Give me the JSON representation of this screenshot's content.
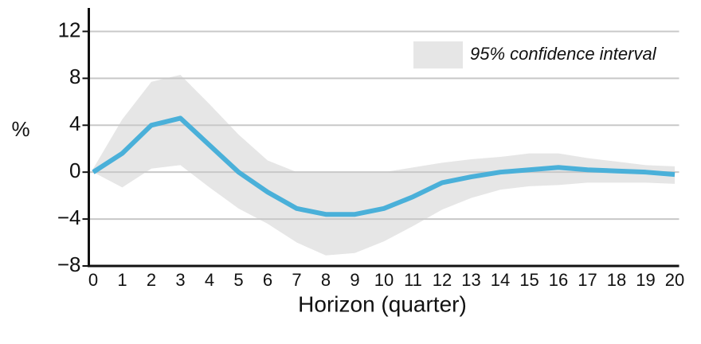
{
  "chart_data": {
    "type": "line",
    "ylabel": "%",
    "xlabel": "Horizon (quarter)",
    "x": [
      0,
      1,
      2,
      3,
      4,
      5,
      6,
      7,
      8,
      9,
      10,
      11,
      12,
      13,
      14,
      15,
      16,
      17,
      18,
      19,
      20
    ],
    "xlim": [
      -0.15,
      20.15
    ],
    "xticks": [
      0,
      1,
      2,
      3,
      4,
      5,
      6,
      7,
      8,
      9,
      10,
      11,
      12,
      13,
      14,
      15,
      16,
      17,
      18,
      19,
      20
    ],
    "ylim": [
      -8,
      14
    ],
    "yticks": [
      {
        "value": -8,
        "label": "−8"
      },
      {
        "value": -4,
        "label": "−4"
      },
      0,
      4,
      8,
      12
    ],
    "grid": true,
    "series": [
      {
        "color": "#4ab0d9",
        "values": [
          0,
          1.6,
          4.0,
          4.6,
          2.3,
          0,
          -1.7,
          -3.1,
          -3.6,
          -3.6,
          -3.1,
          -2.1,
          -0.9,
          -0.4,
          0,
          0.2,
          0.4,
          0.2,
          0.1,
          0,
          -0.2
        ]
      }
    ],
    "band": {
      "name": "95% confidence interval",
      "color": "#e6e6e6",
      "upper": [
        0.3,
        4.5,
        7.7,
        8.3,
        5.8,
        3.2,
        1.0,
        0,
        0,
        0,
        0,
        0.4,
        0.8,
        1.1,
        1.3,
        1.6,
        1.6,
        1.2,
        0.9,
        0.6,
        0.5
      ],
      "lower": [
        0,
        -1.3,
        0.3,
        0.6,
        -1.3,
        -3.1,
        -4.4,
        -6.0,
        -7.1,
        -6.9,
        -5.9,
        -4.6,
        -3.2,
        -2.2,
        -1.5,
        -1.2,
        -1.1,
        -0.9,
        -0.9,
        -0.9,
        -1.0
      ]
    },
    "legend": "top-right"
  }
}
